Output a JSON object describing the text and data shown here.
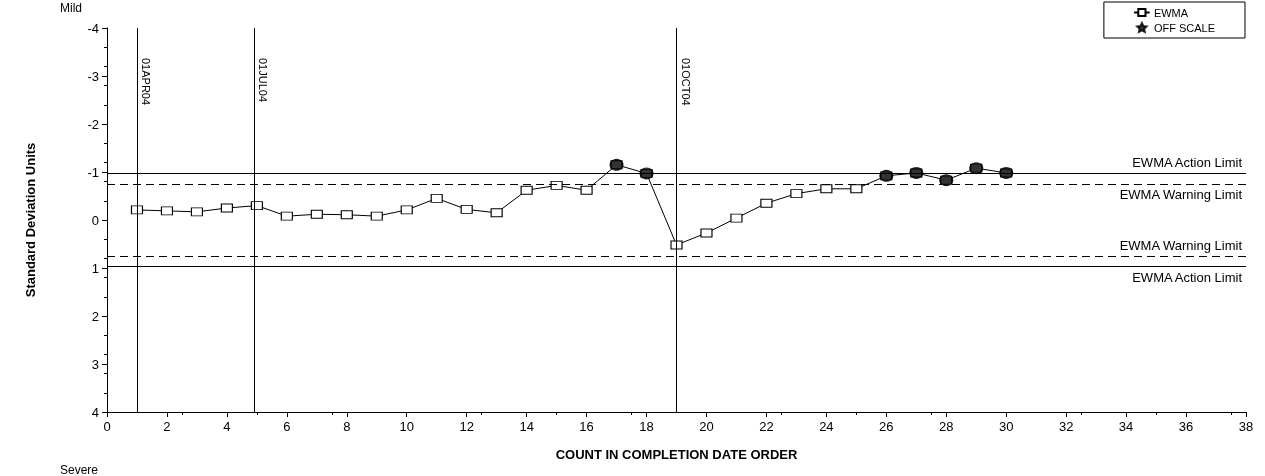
{
  "chart_data": {
    "type": "line",
    "xlabel": "COUNT IN COMPLETION DATE ORDER",
    "ylabel": "Standard Deviation Units",
    "x": [
      1,
      2,
      3,
      4,
      5,
      6,
      7,
      8,
      9,
      10,
      11,
      12,
      13,
      14,
      15,
      16,
      17,
      18,
      19,
      20,
      21,
      22,
      23,
      24,
      25,
      26,
      27,
      28,
      29,
      30
    ],
    "series": [
      {
        "name": "EWMA",
        "color": "#000000",
        "marker": "square",
        "values": [
          -0.21,
          -0.19,
          -0.17,
          -0.25,
          -0.3,
          -0.08,
          -0.12,
          -0.11,
          -0.08,
          -0.21,
          -0.45,
          -0.22,
          -0.15,
          -0.62,
          -0.72,
          -0.62,
          -1.15,
          -0.97,
          0.52,
          0.27,
          -0.04,
          -0.35,
          -0.55,
          -0.65,
          -0.65,
          -0.92,
          -0.98,
          -0.83,
          -1.08,
          -0.98
        ]
      },
      {
        "type": "scatter",
        "color": "#000000",
        "marker": "circle",
        "x": [
          17,
          18,
          26,
          27,
          28,
          29,
          30
        ],
        "values": [
          -1.15,
          -0.97,
          -0.92,
          -0.98,
          -0.83,
          -1.08,
          -0.98
        ]
      },
      {
        "name": "OFF SCALE",
        "type": "scatter",
        "color": "#000000",
        "marker": "star",
        "values": [
          null,
          null,
          null,
          null,
          null,
          null,
          null,
          null,
          null,
          null,
          null,
          null,
          null,
          null,
          null,
          null,
          null,
          null,
          null,
          null,
          null,
          null,
          null,
          null,
          null,
          null,
          null,
          null,
          null,
          null
        ]
      }
    ],
    "xlim": [
      0,
      38
    ],
    "xticks": [
      0,
      2,
      4,
      6,
      8,
      10,
      12,
      14,
      16,
      18,
      20,
      22,
      24,
      26,
      28,
      30,
      32,
      34,
      36,
      38
    ],
    "ylim": [
      4,
      -4
    ],
    "yticks": [
      4,
      3,
      2,
      1,
      0,
      -1,
      -2,
      -3,
      -4
    ],
    "grid": false,
    "legend": "top right",
    "ref_lines": [
      {
        "axis": "y",
        "value": -0.97,
        "label": "EWMA Action Limit",
        "line_style": "solid"
      },
      {
        "axis": "y",
        "value": -0.75,
        "label": "EWMA Warning Limit",
        "line_style": "dashed"
      },
      {
        "axis": "y",
        "value": 0.75,
        "label": "EWMA Warning Limit",
        "line_style": "dashed"
      },
      {
        "axis": "y",
        "value": 0.97,
        "label": "EWMA Action Limit",
        "line_style": "solid"
      },
      {
        "axis": "x",
        "value": 1,
        "label": "01APR04",
        "line_style": "solid"
      },
      {
        "axis": "x",
        "value": 4.9,
        "label": "01JUL04",
        "line_style": "solid"
      },
      {
        "axis": "x",
        "value": 19,
        "label": "01OCT04",
        "line_style": "solid"
      }
    ],
    "annotations": [
      "Mild",
      "Severe"
    ]
  }
}
